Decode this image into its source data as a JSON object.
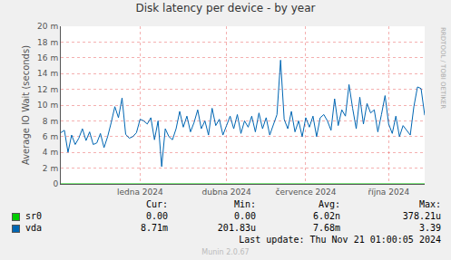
{
  "chart_data": {
    "type": "line",
    "title": "Disk latency per device - by year",
    "y_label": "Average IO Wait (seconds)",
    "categories": [
      null,
      null,
      null,
      null,
      null,
      null,
      null,
      null,
      null,
      null,
      null,
      null,
      null,
      null,
      null,
      null,
      null,
      null,
      null,
      null,
      null,
      null,
      "ledna 2024",
      null,
      null,
      null,
      null,
      null,
      null,
      null,
      null,
      null,
      null,
      null,
      null,
      null,
      null,
      null,
      null,
      null,
      null,
      null,
      null,
      null,
      null,
      null,
      "dubna 2024",
      null,
      null,
      null,
      null,
      null,
      null,
      null,
      null,
      null,
      null,
      null,
      null,
      null,
      null,
      null,
      null,
      null,
      null,
      null,
      null,
      null,
      "července 2024",
      null,
      null,
      null,
      null,
      null,
      null,
      null,
      null,
      null,
      null,
      null,
      null,
      null,
      null,
      null,
      null,
      null,
      null,
      null,
      null,
      null,
      null,
      "října 2024",
      null,
      null,
      null,
      null,
      null,
      null,
      null,
      null,
      null,
      null
    ],
    "series": [
      {
        "name": "sr0",
        "color": "#00cc00",
        "values": [
          0,
          0,
          0,
          0,
          0,
          0,
          0,
          0,
          0,
          0,
          0,
          0,
          0,
          0,
          0,
          0,
          0,
          0,
          0,
          0,
          0,
          0,
          0,
          0,
          0,
          0,
          0,
          0,
          0,
          0,
          0,
          0,
          0,
          0,
          0,
          0,
          0,
          0,
          0,
          0,
          0,
          0,
          0,
          0,
          0,
          0,
          0,
          0,
          0,
          0,
          0,
          0,
          0,
          0,
          0,
          0,
          0,
          0,
          0,
          0,
          0,
          0,
          0,
          0,
          0,
          0,
          0,
          0,
          0,
          0,
          0,
          0,
          0,
          0,
          0,
          0,
          0,
          0,
          0,
          0,
          0,
          0,
          0,
          0,
          0,
          0,
          0,
          0,
          0,
          0,
          0,
          0,
          0,
          0,
          0,
          0,
          0,
          0,
          0,
          0,
          0,
          0
        ],
        "stats": [
          "0.00",
          "0.00",
          "6.02n",
          "378.21u"
        ]
      },
      {
        "name": "vda",
        "color": "#0066b3",
        "values": [
          0.0065,
          0.0068,
          0.004,
          0.0062,
          0.005,
          0.0058,
          0.007,
          0.0055,
          0.0066,
          0.005,
          0.0052,
          0.0064,
          0.0046,
          0.006,
          0.0078,
          0.0098,
          0.0084,
          0.0109,
          0.0063,
          0.0058,
          0.006,
          0.0065,
          0.0082,
          0.008,
          0.0076,
          0.0084,
          0.0056,
          0.008,
          0.0022,
          0.007,
          0.006,
          0.0056,
          0.007,
          0.0092,
          0.0072,
          0.0086,
          0.0066,
          0.0078,
          0.0094,
          0.007,
          0.008,
          0.0062,
          0.0096,
          0.0074,
          0.0082,
          0.0062,
          0.0074,
          0.0086,
          0.007,
          0.0088,
          0.0064,
          0.008,
          0.0072,
          0.0086,
          0.0066,
          0.009,
          0.007,
          0.0084,
          0.0062,
          0.0076,
          0.0088,
          0.0157,
          0.0082,
          0.007,
          0.0092,
          0.0066,
          0.008,
          0.006,
          0.0084,
          0.0072,
          0.0086,
          0.006,
          0.0084,
          0.0088,
          0.008,
          0.0068,
          0.0108,
          0.0074,
          0.0094,
          0.0086,
          0.0126,
          0.0096,
          0.007,
          0.011,
          0.0076,
          0.0102,
          0.009,
          0.0094,
          0.0066,
          0.0088,
          0.0112,
          0.0076,
          0.0064,
          0.0086,
          0.006,
          0.0074,
          0.0068,
          0.0062,
          0.0098,
          0.0123,
          0.0121,
          0.00871
        ],
        "stats": [
          "8.71m",
          "201.83u",
          "7.68m",
          "3.39"
        ]
      }
    ],
    "stat_headers": [
      "Cur:",
      "Min:",
      "Avg:",
      "Max:"
    ],
    "ylim": [
      0,
      0.02
    ],
    "yticks": [
      0,
      {
        "value": 0.002,
        "label": "2 m"
      },
      {
        "value": 0.004,
        "label": "4 m"
      },
      {
        "value": 0.006,
        "label": "6 m"
      },
      {
        "value": 0.008,
        "label": "8 m"
      },
      {
        "value": 0.01,
        "label": "10 m"
      },
      {
        "value": 0.012,
        "label": "12 m"
      },
      {
        "value": 0.014,
        "label": "14 m"
      },
      {
        "value": 0.016,
        "label": "16 m"
      },
      {
        "value": 0.018,
        "label": "18 m"
      },
      {
        "value": 0.02,
        "label": "20 m"
      }
    ],
    "grid": true,
    "footer": "Last update: Thu Nov 21 01:00:05 2024",
    "credit": "Munin 2.0.67",
    "side_text": "RRDTOOL / TOBI OETIKER"
  }
}
